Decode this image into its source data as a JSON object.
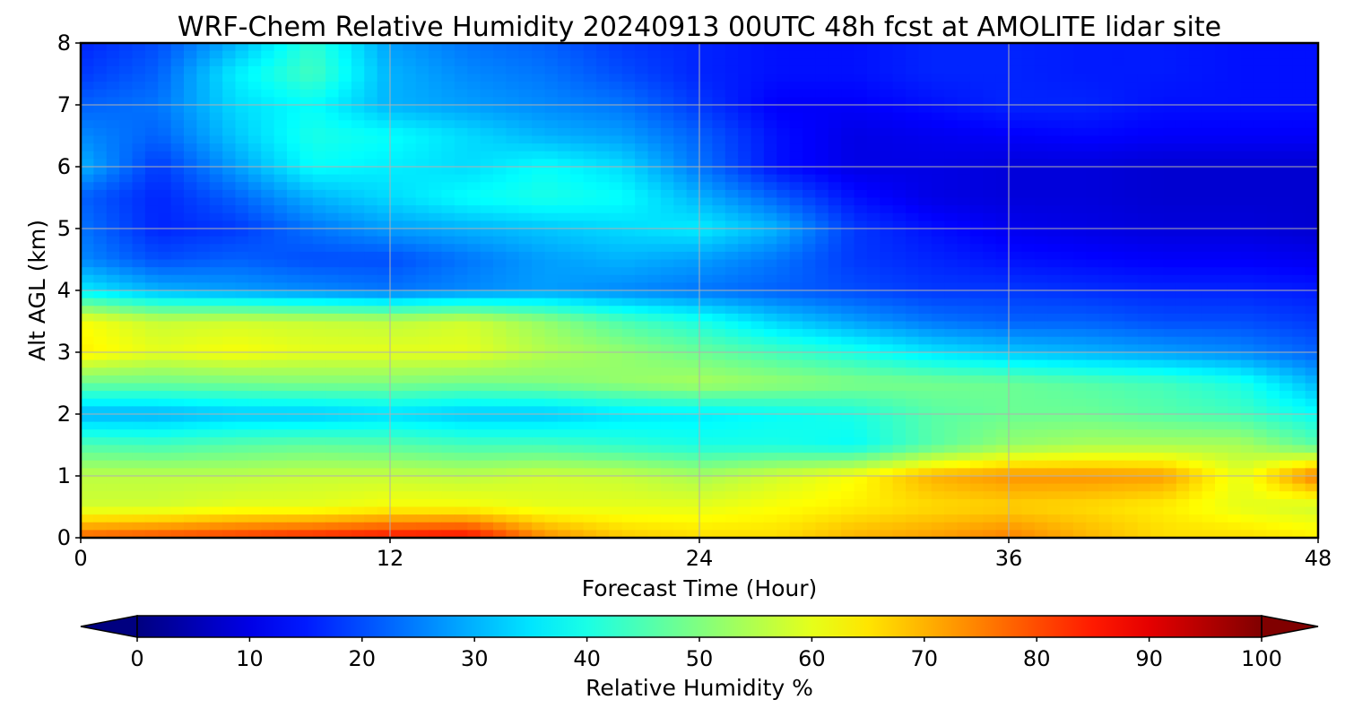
{
  "chart_data": {
    "type": "heatmap",
    "title": "WRF-Chem Relative Humidity 20240913 00UTC 48h fcst at AMOLITE lidar site",
    "xlabel": "Forecast Time (Hour)",
    "ylabel": "Alt AGL (km)",
    "xlim": [
      0,
      48
    ],
    "ylim": [
      0,
      8
    ],
    "x_ticks": [
      "0",
      "12",
      "24",
      "36",
      "48"
    ],
    "y_ticks": [
      "0",
      "1",
      "2",
      "3",
      "4",
      "5",
      "6",
      "7",
      "8"
    ],
    "grid": true,
    "colormap": "jet",
    "colorbar": {
      "label": "Relative Humidity %",
      "orientation": "horizontal",
      "position": "bottom",
      "range": [
        0,
        100
      ],
      "extend": "both",
      "ticks": [
        "0",
        "10",
        "20",
        "30",
        "40",
        "50",
        "60",
        "70",
        "80",
        "90",
        "100"
      ]
    },
    "x": [
      0,
      3,
      6,
      9,
      12,
      15,
      18,
      21,
      24,
      27,
      30,
      33,
      36,
      39,
      42,
      45,
      48
    ],
    "y": [
      0,
      0.5,
      1,
      1.5,
      2,
      2.5,
      3,
      3.5,
      4,
      4.5,
      5,
      5.5,
      6,
      6.5,
      7,
      7.5,
      8
    ],
    "z": [
      [
        78,
        80,
        82,
        84,
        86,
        87,
        74,
        68,
        66,
        66,
        70,
        72,
        75,
        70,
        66,
        66,
        64
      ],
      [
        58,
        58,
        60,
        60,
        62,
        62,
        60,
        60,
        60,
        62,
        64,
        66,
        67,
        66,
        64,
        60,
        58
      ],
      [
        56,
        56,
        56,
        57,
        57,
        56,
        58,
        57,
        54,
        58,
        62,
        70,
        73,
        73,
        72,
        60,
        76
      ],
      [
        45,
        44,
        46,
        47,
        46,
        44,
        44,
        42,
        40,
        40,
        38,
        46,
        52,
        54,
        54,
        54,
        46
      ],
      [
        30,
        30,
        32,
        32,
        34,
        32,
        32,
        35,
        36,
        38,
        40,
        46,
        48,
        48,
        46,
        44,
        38
      ],
      [
        48,
        48,
        49,
        50,
        50,
        49,
        50,
        52,
        54,
        52,
        50,
        49,
        48,
        46,
        44,
        40,
        30
      ],
      [
        64,
        60,
        62,
        60,
        60,
        60,
        55,
        52,
        48,
        44,
        40,
        35,
        32,
        30,
        28,
        26,
        22
      ],
      [
        62,
        57,
        58,
        57,
        56,
        58,
        52,
        45,
        40,
        33,
        28,
        24,
        22,
        22,
        20,
        20,
        18
      ],
      [
        36,
        30,
        28,
        26,
        24,
        26,
        28,
        26,
        24,
        22,
        20,
        18,
        18,
        17,
        16,
        16,
        15
      ],
      [
        26,
        20,
        22,
        20,
        20,
        24,
        28,
        30,
        28,
        24,
        18,
        16,
        14,
        13,
        12,
        12,
        11
      ],
      [
        24,
        16,
        18,
        24,
        28,
        30,
        32,
        34,
        36,
        30,
        18,
        14,
        11,
        10,
        9,
        9,
        8
      ],
      [
        22,
        16,
        22,
        30,
        34,
        38,
        40,
        38,
        30,
        22,
        14,
        10,
        9,
        9,
        8,
        8,
        8
      ],
      [
        30,
        18,
        28,
        38,
        36,
        34,
        38,
        34,
        24,
        14,
        10,
        10,
        9,
        9,
        8,
        8,
        8
      ],
      [
        26,
        22,
        32,
        40,
        38,
        34,
        30,
        28,
        22,
        14,
        10,
        11,
        12,
        13,
        12,
        12,
        12
      ],
      [
        22,
        24,
        34,
        38,
        30,
        28,
        26,
        24,
        18,
        12,
        12,
        14,
        16,
        16,
        14,
        14,
        14
      ],
      [
        18,
        22,
        36,
        44,
        30,
        26,
        24,
        20,
        16,
        14,
        14,
        16,
        16,
        15,
        15,
        14,
        14
      ],
      [
        16,
        20,
        30,
        42,
        28,
        24,
        22,
        18,
        16,
        14,
        14,
        16,
        16,
        15,
        15,
        14,
        14
      ]
    ]
  }
}
